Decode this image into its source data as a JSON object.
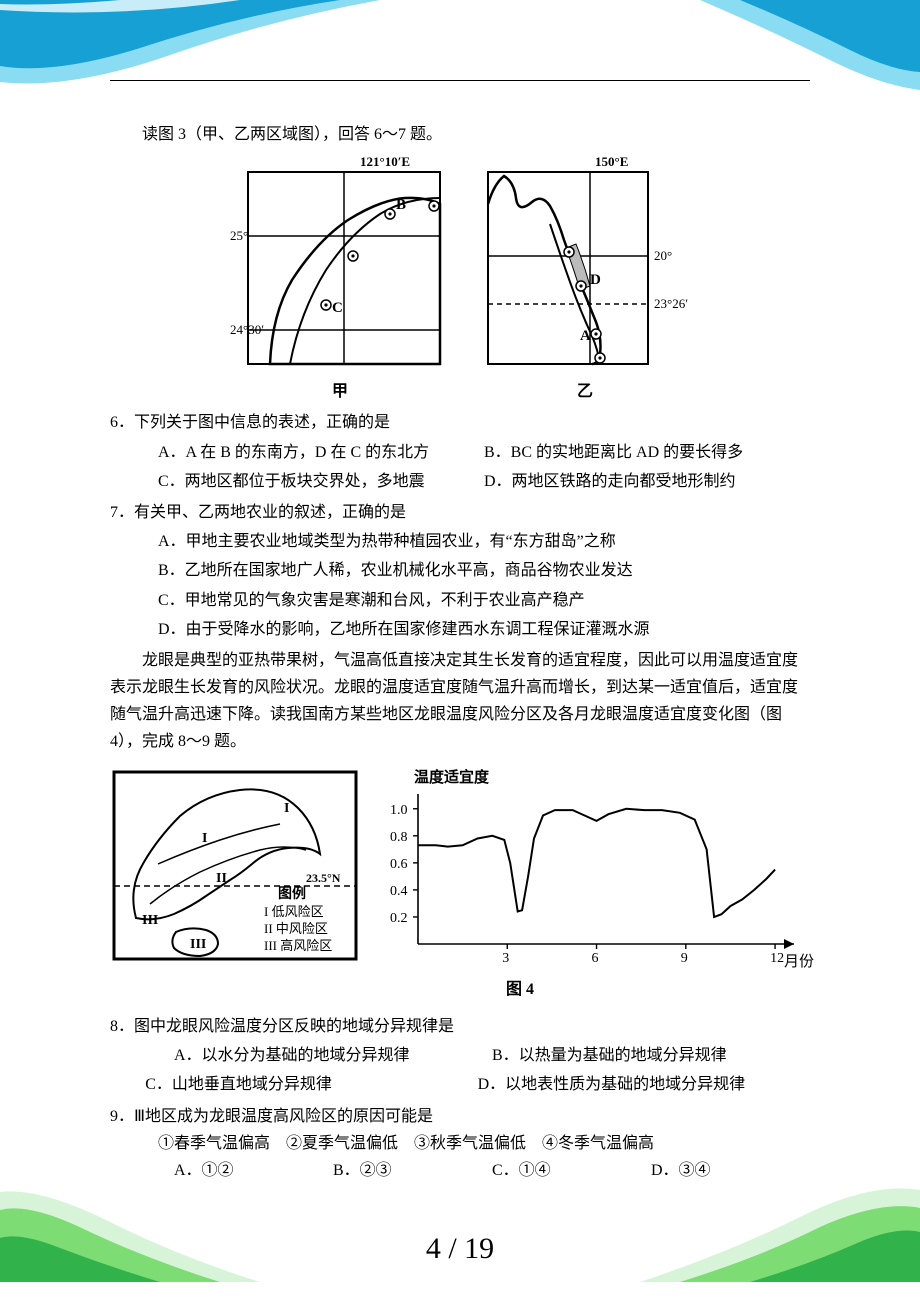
{
  "header_deco": {
    "gradient_top": [
      "#8adcf2",
      "#16a0d4",
      "#0b86c5"
    ],
    "gradient_bottom": [
      "#d8f4d8",
      "#7edc74",
      "#31b24a"
    ]
  },
  "intro3": "读图 3（甲、乙两区域图），回答 6～7 题。",
  "map1": {
    "lon": "121°10′E",
    "lat_top": "25°",
    "lat_bot": "24°30′",
    "labels": {
      "B": "B",
      "C": "C"
    },
    "caption": "甲"
  },
  "map2": {
    "lon": "150°E",
    "lat_top": "20°",
    "lat_bot": "23°26′",
    "labels": {
      "D": "D",
      "A": "A"
    },
    "caption": "乙"
  },
  "q6": {
    "stem": "6．下列关于图中信息的表述，正确的是",
    "A": "A．A 在 B 的东南方，D 在 C 的东北方",
    "B": "B．BC 的实地距离比 AD 的要长得多",
    "C": "C．两地区都位于板块交界处，多地震",
    "D": "D．两地区铁路的走向都受地形制约"
  },
  "q7": {
    "stem": "7．有关甲、乙两地农业的叙述，正确的是",
    "A": "A．甲地主要农业地域类型为热带种植园农业，有“东方甜岛”之称",
    "B": "B．乙地所在国家地广人稀，农业机械化水平高，商品谷物农业发达",
    "C": "C．甲地常见的气象灾害是寒潮和台风，不利于农业高产稳产",
    "D": "D．由于受降水的影响，乙地所在国家修建西水东调工程保证灌溉水源"
  },
  "para_longan": "龙眼是典型的亚热带果树，气温高低直接决定其生长发育的适宜程度，因此可以用温度适宜度表示龙眼生长发育的风险状况。龙眼的温度适宜度随气温升高而增长，到达某一适宜值后，适宜度随气温升高迅速下降。读我国南方某些地区龙眼温度风险分区及各月龙眼温度适宜度变化图（图 4），完成 8～9 题。",
  "fig4_left": {
    "lat": "23.5°N",
    "legend_title": "图例",
    "legend": [
      {
        "label": "I 低风险区"
      },
      {
        "label": "II 中风险区"
      },
      {
        "label": "III 高风险区"
      }
    ],
    "zone_labels": [
      "I",
      "I",
      "II",
      "III",
      "III"
    ]
  },
  "fig4_right": {
    "ylabel": "温度适宜度",
    "yticks": [
      "1.0",
      "0.8",
      "0.6",
      "0.4",
      "0.2"
    ],
    "xticks": [
      "3",
      "6",
      "9",
      "12"
    ],
    "xlabel": "月份",
    "line_color": "#000000",
    "axis_color": "#000000",
    "series": [
      [
        0,
        0.73
      ],
      [
        0.6,
        0.73
      ],
      [
        1.0,
        0.72
      ],
      [
        1.5,
        0.73
      ],
      [
        2.0,
        0.78
      ],
      [
        2.5,
        0.8
      ],
      [
        2.9,
        0.77
      ],
      [
        3.1,
        0.6
      ],
      [
        3.35,
        0.24
      ],
      [
        3.5,
        0.25
      ],
      [
        3.7,
        0.5
      ],
      [
        3.9,
        0.78
      ],
      [
        4.2,
        0.95
      ],
      [
        4.6,
        0.99
      ],
      [
        5.2,
        0.99
      ],
      [
        5.6,
        0.95
      ],
      [
        6.0,
        0.91
      ],
      [
        6.4,
        0.96
      ],
      [
        7.0,
        1.0
      ],
      [
        7.6,
        0.99
      ],
      [
        8.2,
        0.99
      ],
      [
        8.8,
        0.97
      ],
      [
        9.3,
        0.92
      ],
      [
        9.7,
        0.7
      ],
      [
        9.95,
        0.2
      ],
      [
        10.2,
        0.22
      ],
      [
        10.5,
        0.28
      ],
      [
        10.9,
        0.33
      ],
      [
        11.3,
        0.4
      ],
      [
        11.7,
        0.48
      ],
      [
        12.0,
        0.55
      ]
    ]
  },
  "fig4_caption": "图 4",
  "q8": {
    "stem": "8．图中龙眼风险温度分区反映的地域分异规律是",
    "A": "A．以水分为基础的地域分异规律",
    "B": "B．以热量为基础的地域分异规律",
    "C": "C．山地垂直地域分异规律",
    "D": "D．以地表性质为基础的地域分异规律"
  },
  "q9": {
    "stem": "9．Ⅲ地区成为龙眼温度高风险区的原因可能是",
    "circled": "①春季气温偏高　②夏季气温偏低　③秋季气温偏低　④冬季气温偏高",
    "A": "A．①②",
    "B": "B．②③",
    "C": "C．①④",
    "D": "D．③④"
  },
  "page_number": "4 / 19"
}
